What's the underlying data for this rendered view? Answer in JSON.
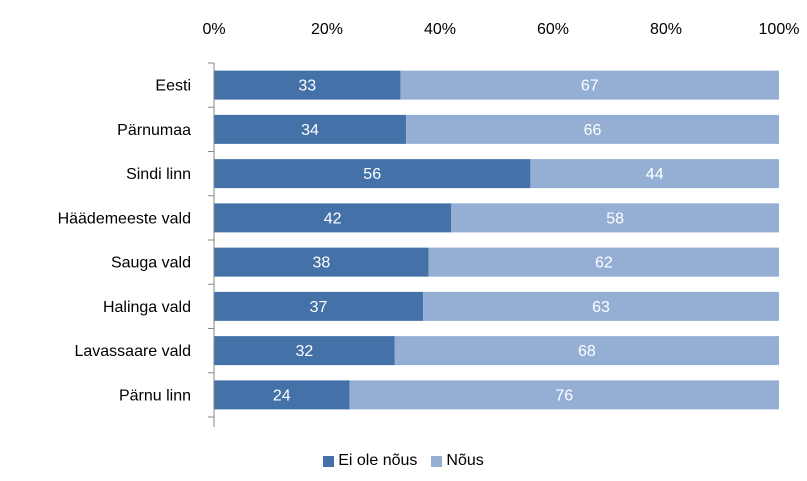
{
  "chart_data": {
    "type": "bar",
    "orientation": "horizontal",
    "stacked": "100%",
    "categories": [
      "Eesti",
      "Pärnumaa",
      "Sindi linn",
      "Häädemeeste vald",
      "Sauga vald",
      "Halinga vald",
      "Lavassaare vald",
      "Pärnu linn"
    ],
    "series": [
      {
        "name": "Ei ole nõus",
        "color": "#4472A8",
        "values": [
          33,
          34,
          56,
          42,
          38,
          37,
          32,
          24
        ]
      },
      {
        "name": "Nõus",
        "color": "#95AED4",
        "values": [
          67,
          66,
          44,
          58,
          62,
          63,
          68,
          76
        ]
      }
    ],
    "x_ticks": [
      "0%",
      "20%",
      "40%",
      "60%",
      "80%",
      "100%"
    ],
    "xlim": [
      0,
      100
    ],
    "axis_position": "top",
    "grid": false,
    "legend_position": "bottom"
  }
}
